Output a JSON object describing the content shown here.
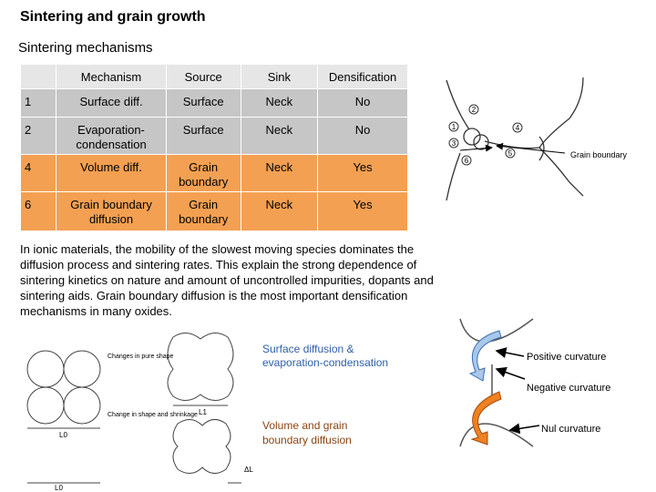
{
  "header": {
    "title": "Sintering and grain growth",
    "subtitle": "Sintering mechanisms"
  },
  "table": {
    "columns": [
      "",
      "Mechanism",
      "Source",
      "Sink",
      "Densification"
    ],
    "rows": [
      [
        "1",
        "Surface diff.",
        "Surface",
        "Neck",
        "No"
      ],
      [
        "2",
        "Evaporation-condensation",
        "Surface",
        "Neck",
        "No"
      ],
      [
        "4",
        "Volume diff.",
        "Grain boundary",
        "Neck",
        "Yes"
      ],
      [
        "6",
        "Grain boundary diffusion",
        "Grain boundary",
        "Neck",
        "Yes"
      ]
    ]
  },
  "figure_top": {
    "label": "Grain boundary",
    "markers": [
      "1",
      "2",
      "3",
      "4",
      "5",
      "6"
    ]
  },
  "paragraph": "In ionic materials, the mobility of the slowest moving species dominates the diffusion process and sintering rates. This explain the strong dependence of sintering kinetics on nature and amount of uncontrolled impurities, dopants and sintering aids. Grain boundary diffusion is the most important densification mechanisms in many oxides.",
  "figure_left": {
    "label_top": "Changes in pure shape",
    "label_bottom": "Change in shape and shrinkage",
    "l0_top": "L0",
    "l1": "L1",
    "l0_bottom": "L0",
    "dl": "ΔL"
  },
  "figure_right": {
    "surface": "Surface diffusion & evaporation-condensation",
    "volume": "Volume and grain boundary diffusion",
    "positive": "Positive curvature",
    "negative": "Negative curvature",
    "nul": "Nul curvature"
  }
}
